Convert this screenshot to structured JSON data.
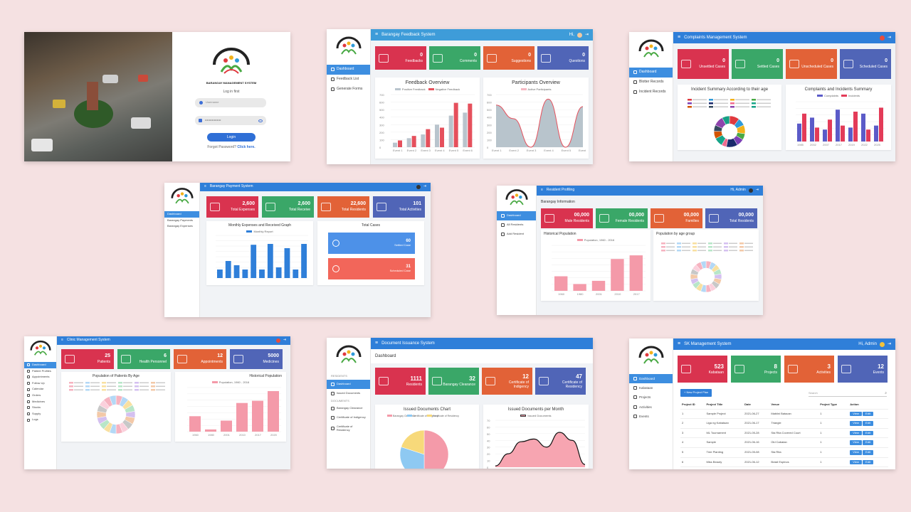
{
  "login": {
    "brand": "BARANGAY MANAGEMENT SYSTEM",
    "prompt": "Log in first",
    "username_placeholder": "Username",
    "password_value": "••••••••••••••••",
    "login_button": "Login",
    "forgot": "Forgot Password?",
    "click_here": "Click here."
  },
  "feedback": {
    "title": "Barangay Feedback System",
    "user": "Hi,",
    "nav": [
      "Dashboard",
      "Feedback List",
      "Generate Forms"
    ],
    "stats": [
      {
        "value": "0",
        "label": "Feedbacks",
        "color": "#d9334f"
      },
      {
        "value": "0",
        "label": "Comments",
        "color": "#3aa768"
      },
      {
        "value": "0",
        "label": "Suggestions",
        "color": "#e26237"
      },
      {
        "value": "0",
        "label": "Questions",
        "color": "#5065b7"
      }
    ],
    "chart1_title": "Feedback Overview",
    "chart1_legend": [
      "Positive Feedback",
      "Negative Feedback"
    ],
    "chart2_title": "Participants Overview",
    "chart2_legend": [
      "Active Participants"
    ],
    "yticks": [
      "700",
      "600",
      "500",
      "400",
      "300",
      "200",
      "100",
      "0"
    ],
    "events": [
      "Event 1",
      "Event 2",
      "Event 3",
      "Event 4",
      "Event 5",
      "Event 6"
    ]
  },
  "complaints": {
    "title": "Complaints Management System",
    "nav": [
      "Dashboard",
      "Blotter Records",
      "Incident Records"
    ],
    "stats": [
      {
        "value": "0",
        "label": "Unsettled Cases",
        "color": "#d9334f"
      },
      {
        "value": "0",
        "label": "Settled Cases",
        "color": "#3aa768"
      },
      {
        "value": "0",
        "label": "Unscheduled Cases",
        "color": "#e26237"
      },
      {
        "value": "0",
        "label": "Scheduled Cases",
        "color": "#5065b7"
      }
    ],
    "panel1": "Incident Summary According to their age",
    "panel2": "Complaints and Incidents Summary",
    "legend": [
      "Complaints",
      "Incidents"
    ],
    "years": [
      "1985",
      "2002",
      "2007",
      "2017",
      "2019",
      "2022",
      "2025"
    ]
  },
  "payment": {
    "title": "Barangay Payment System",
    "nav": [
      "Dashboard",
      "Barangay Payments",
      "Barangay Expenses"
    ],
    "stats": [
      {
        "value": "2,600",
        "label": "Total Expenses",
        "color": "#d9334f"
      },
      {
        "value": "2,600",
        "label": "Total Receive",
        "color": "#3aa768"
      },
      {
        "value": "22,600",
        "label": "Total Residents",
        "color": "#e26237"
      },
      {
        "value": "101",
        "label": "Total Activities",
        "color": "#5065b7"
      }
    ],
    "chart_title": "Monthly Expenses and Received Graph",
    "legend": "Monthly Report",
    "cases_title": "Total Cases",
    "cases": [
      {
        "value": "60",
        "label": "Settled Case",
        "color": "#4d91e8"
      },
      {
        "value": "31",
        "label": "Scheduled Case",
        "color": "#f2665a"
      }
    ]
  },
  "residents": {
    "title": "Resident Profiling",
    "user": "Hi, Admin",
    "nav": [
      "Dashboard",
      "All Residents",
      "Add Resident"
    ],
    "heading": "Barangay Information",
    "stats": [
      {
        "value": "00,000",
        "label": "Male Residents",
        "color": "#d9334f"
      },
      {
        "value": "00,000",
        "label": "Female Residents",
        "color": "#3aa768"
      },
      {
        "value": "00,000",
        "label": "Families",
        "color": "#e26237"
      },
      {
        "value": "00,000",
        "label": "Total Residents",
        "color": "#5065b7"
      }
    ],
    "panel1": "Historical Population",
    "panel1_legend": "Population, 1960 - 2016",
    "panel2": "Population by age group",
    "years": [
      "1960",
      "1980",
      "2001",
      "2010",
      "2017"
    ]
  },
  "clinic": {
    "title": "Clinic Management System",
    "nav": [
      "Dashboard",
      "Patient Profiles",
      "Appointments",
      "Follow Up",
      "Calendar",
      "Orders",
      "Medicines",
      "Stocks",
      "Supply",
      "Logs"
    ],
    "stats": [
      {
        "value": "25",
        "label": "Patients",
        "color": "#d9334f"
      },
      {
        "value": "6",
        "label": "Health Personnel",
        "color": "#3aa768"
      },
      {
        "value": "12",
        "label": "Appointments",
        "color": "#e26237"
      },
      {
        "value": "5000",
        "label": "Medicines",
        "color": "#5065b7"
      }
    ],
    "panel1": "Population of Patients By Age",
    "panel2": "Historical Population",
    "panel2_legend": "Population, 1960 - 2016",
    "years": [
      "1960",
      "1980",
      "2001",
      "2010",
      "2017",
      "2020"
    ]
  },
  "documents": {
    "title": "Document Issuance System",
    "heading": "Dashboard",
    "section1": "RESIDENTS",
    "section2": "DOCUMENTS",
    "nav": [
      "Dashboard",
      "Issued Documents",
      "Barangay Clearance",
      "Certificate of Indigency",
      "Certificate of Residency"
    ],
    "stats": [
      {
        "value": "1111",
        "label": "Residents",
        "color": "#d9334f"
      },
      {
        "value": "32",
        "label": "Barangay Clearance",
        "color": "#3aa768"
      },
      {
        "value": "12",
        "label": "Certificate of Indigency",
        "color": "#e26237"
      },
      {
        "value": "47",
        "label": "Certificate of Residency",
        "color": "#5065b7"
      }
    ],
    "panel1": "Issued Documents Chart",
    "pie_legend": [
      "Barangay Clearance",
      "Certificate of Indigency",
      "Certificate of Residency"
    ],
    "panel2": "Issued Documents per Month",
    "panel2_legend": "Issued Documents",
    "yticks": [
      "70",
      "60",
      "50",
      "40",
      "30",
      "20",
      "10",
      "0"
    ]
  },
  "sk": {
    "title": "SK Management System",
    "user": "Hi, Admin",
    "nav": [
      "Dashboard",
      "Kabataan",
      "Projects",
      "Activities",
      "Events"
    ],
    "stats": [
      {
        "value": "523",
        "label": "Kabataan",
        "color": "#d9334f"
      },
      {
        "value": "8",
        "label": "Projects",
        "color": "#3aa768"
      },
      {
        "value": "3",
        "label": "Activities",
        "color": "#e26237"
      },
      {
        "value": "12",
        "label": "Events",
        "color": "#5065b7"
      }
    ],
    "new_button": "+ New Project Plan",
    "search_placeholder": "Search",
    "headers": [
      "Project ID",
      "Project Title",
      "Date",
      "Venue",
      "Project Type",
      "Action"
    ],
    "view": "View",
    "edit": "Edit",
    "rows": [
      [
        "1",
        "Sample Project",
        "2021-06-27",
        "Mabiini Batacan",
        "1"
      ],
      [
        "2",
        "Liga ng Kabataan",
        "2021-06-17",
        "Triangle",
        "1"
      ],
      [
        "3",
        "ML Tournament",
        "2021-05-28",
        "Sta Rita Covered Court",
        "1"
      ],
      [
        "4",
        "Sample",
        "2021-06-16",
        "Old Cabatan",
        "1"
      ],
      [
        "5",
        "Tree Planting",
        "2021-05-08",
        "Sta Rita",
        "1"
      ],
      [
        "6",
        "Miss Beauty",
        "2021-06-12",
        "Brasil Espinos",
        "1"
      ]
    ]
  }
}
